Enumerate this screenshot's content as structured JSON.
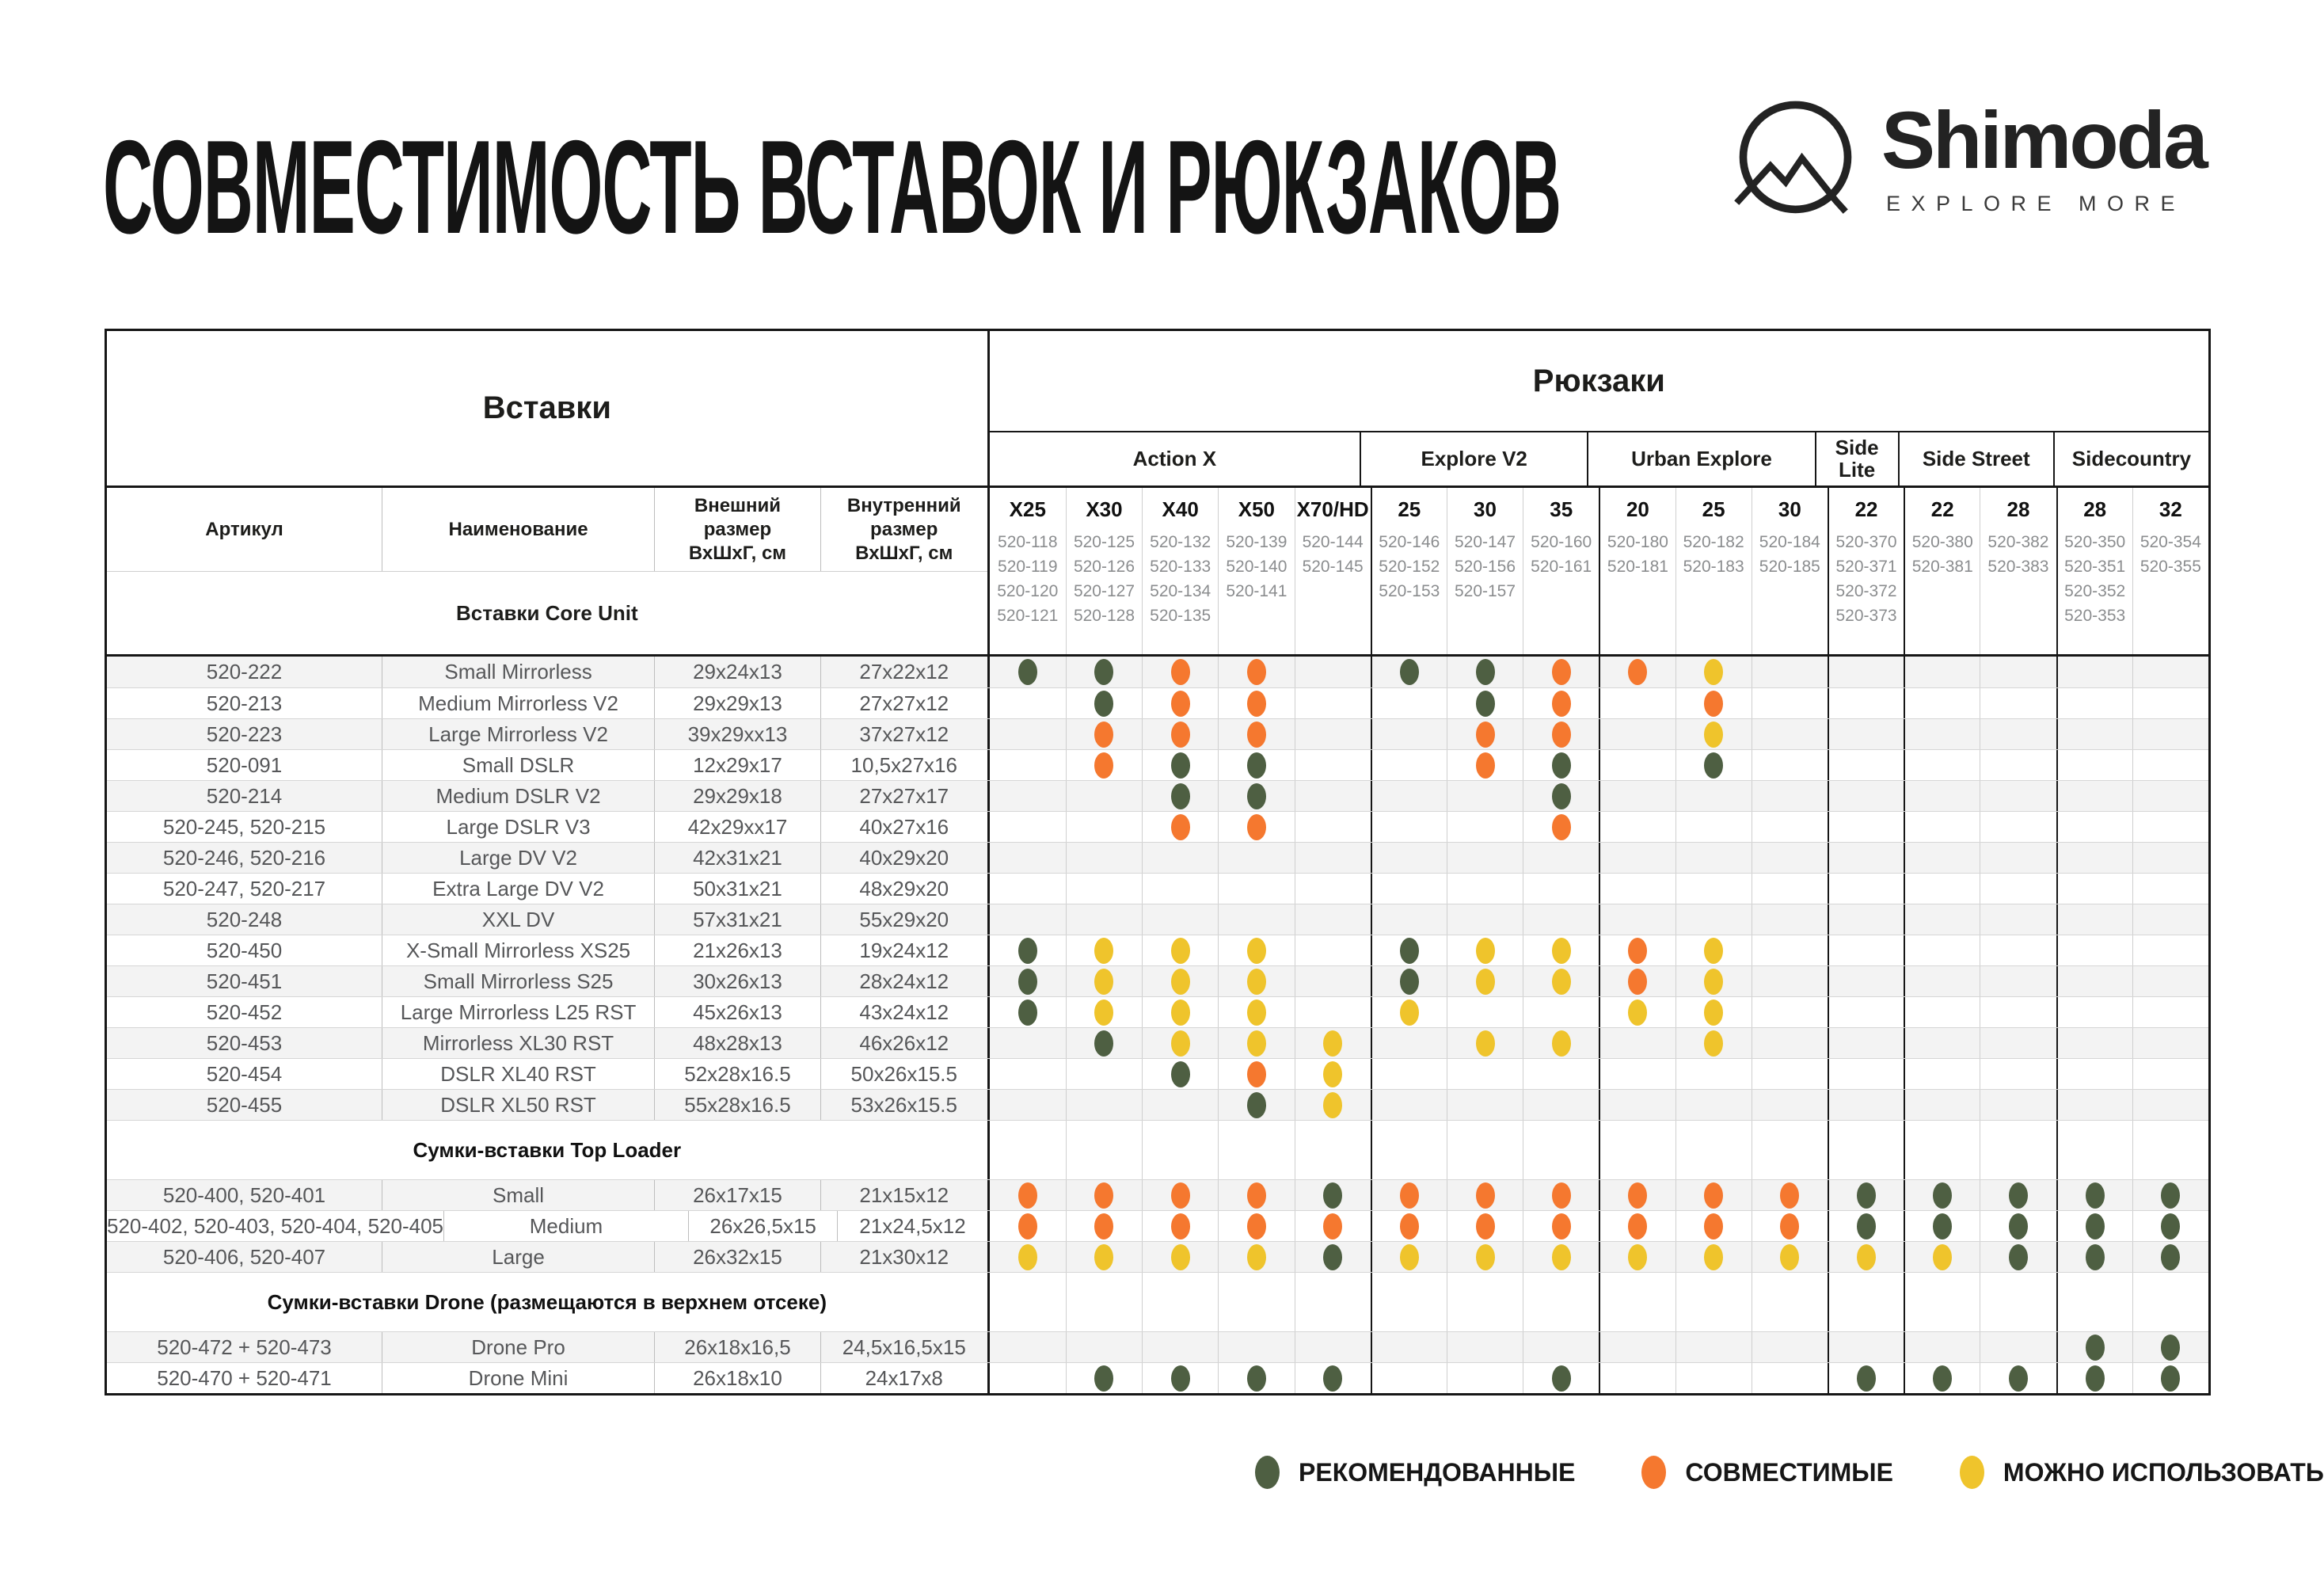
{
  "title": "СОВМЕСТИМОСТЬ ВСТАВОК И РЮКЗАКОВ",
  "logo": {
    "brand": "Shimoda",
    "tagline": "EXPLORE MORE"
  },
  "dot_colors": {
    "R": "#4e5f42",
    "C": "#f5782f",
    "U": "#efc42c"
  },
  "table": {
    "inserts_header": "Вставки",
    "backpacks_header": "Рюкзаки",
    "left_columns": [
      "Артикул",
      "Наименование",
      "Внешний размер ВхШхГ, см",
      "Внутренний размер ВхШхГ, см"
    ],
    "groups": [
      {
        "name": "Action X",
        "cols": 5
      },
      {
        "name": "Explore V2",
        "cols": 3
      },
      {
        "name": "Urban Explore",
        "cols": 3
      },
      {
        "name": "Side Lite",
        "cols": 1
      },
      {
        "name": "Side Street",
        "cols": 2
      },
      {
        "name": "Sidecountry",
        "cols": 2
      }
    ],
    "columns": [
      {
        "size": "X25",
        "articles": [
          "520-118",
          "520-119",
          "520-120",
          "520-121"
        ]
      },
      {
        "size": "X30",
        "articles": [
          "520-125",
          "520-126",
          "520-127",
          "520-128"
        ]
      },
      {
        "size": "X40",
        "articles": [
          "520-132",
          "520-133",
          "520-134",
          "520-135"
        ]
      },
      {
        "size": "X50",
        "articles": [
          "520-139",
          "520-140",
          "520-141"
        ]
      },
      {
        "size": "X70/HD",
        "articles": [
          "520-144",
          "520-145"
        ]
      },
      {
        "size": "25",
        "articles": [
          "520-146",
          "520-152",
          "520-153"
        ]
      },
      {
        "size": "30",
        "articles": [
          "520-147",
          "520-156",
          "520-157"
        ]
      },
      {
        "size": "35",
        "articles": [
          "520-160",
          "520-161"
        ]
      },
      {
        "size": "20",
        "articles": [
          "520-180",
          "520-181"
        ]
      },
      {
        "size": "25",
        "articles": [
          "520-182",
          "520-183"
        ]
      },
      {
        "size": "30",
        "articles": [
          "520-184",
          "520-185"
        ]
      },
      {
        "size": "22",
        "articles": [
          "520-370",
          "520-371",
          "520-372",
          "520-373"
        ]
      },
      {
        "size": "22",
        "articles": [
          "520-380",
          "520-381"
        ]
      },
      {
        "size": "28",
        "articles": [
          "520-382",
          "520-383"
        ]
      },
      {
        "size": "28",
        "articles": [
          "520-350",
          "520-351",
          "520-352",
          "520-353"
        ]
      },
      {
        "size": "32",
        "articles": [
          "520-354",
          "520-355"
        ]
      }
    ],
    "rows": [
      {
        "type": "section",
        "label": "Вставки Core Unit"
      },
      {
        "type": "item",
        "article": "520-222",
        "name": "Small Mirrorless",
        "outer": "29x24x13",
        "inner": "27x22x12",
        "dots": "RRCC_RRCCU______"
      },
      {
        "type": "item",
        "article": "520-213",
        "name": "Medium Mirrorless V2",
        "outer": "29x29x13",
        "inner": "27x27x12",
        "dots": "_RCC__RC_C______"
      },
      {
        "type": "item",
        "article": "520-223",
        "name": "Large Mirrorless V2",
        "outer": "39x29xx13",
        "inner": "37x27x12",
        "dots": "_CCC__CC_U______"
      },
      {
        "type": "item",
        "article": "520-091",
        "name": "Small DSLR",
        "outer": "12x29x17",
        "inner": "10,5x27x16",
        "dots": "_CRR__CR_R______"
      },
      {
        "type": "item",
        "article": "520-214",
        "name": "Medium DSLR V2",
        "outer": "29x29x18",
        "inner": "27x27x17",
        "dots": "__RR___R________"
      },
      {
        "type": "item",
        "article": "520-245, 520-215",
        "name": "Large DSLR V3",
        "outer": "42x29xx17",
        "inner": "40x27x16",
        "dots": "__CC___C________"
      },
      {
        "type": "item",
        "article": "520-246, 520-216",
        "name": "Large DV V2",
        "outer": "42x31x21",
        "inner": "40x29x20",
        "dots": "________________"
      },
      {
        "type": "item",
        "article": "520-247, 520-217",
        "name": "Extra Large DV V2",
        "outer": "50x31x21",
        "inner": "48x29x20",
        "dots": "________________"
      },
      {
        "type": "item",
        "article": "520-248",
        "name": "XXL DV",
        "outer": "57x31x21",
        "inner": "55x29x20",
        "dots": "________________"
      },
      {
        "type": "item",
        "article": "520-450",
        "name": "X-Small Mirrorless XS25",
        "outer": "21x26x13",
        "inner": "19x24x12",
        "dots": "RUUU_RUUCU______"
      },
      {
        "type": "item",
        "article": "520-451",
        "name": "Small Mirrorless S25",
        "outer": "30x26x13",
        "inner": "28x24x12",
        "dots": "RUUU_RUUCU______"
      },
      {
        "type": "item",
        "article": "520-452",
        "name": "Large Mirrorless L25 RST",
        "outer": "45x26x13",
        "inner": "43x24x12",
        "dots": "RUUU_U__UU______"
      },
      {
        "type": "item",
        "article": "520-453",
        "name": "Mirrorless XL30 RST",
        "outer": "48x28x13",
        "inner": "46x26x12",
        "dots": "_RUUU_UU_U______"
      },
      {
        "type": "item",
        "article": "520-454",
        "name": "DSLR XL40 RST",
        "outer": "52x28x16.5",
        "inner": "50x26x15.5",
        "dots": "__RCU___________"
      },
      {
        "type": "item",
        "article": "520-455",
        "name": "DSLR XL50 RST",
        "outer": "55x28x16.5",
        "inner": "53x26x15.5",
        "dots": "___RU___________"
      },
      {
        "type": "section",
        "label": "Сумки-вставки Top Loader"
      },
      {
        "type": "item",
        "article": "520-400, 520-401",
        "name": "Small",
        "outer": "26x17x15",
        "inner": "21x15x12",
        "dots": "CCCCRCCCCCCRRRRR"
      },
      {
        "type": "item",
        "article": "520-402, 520-403, 520-404, 520-405",
        "name": "Medium",
        "outer": "26x26,5x15",
        "inner": "21x24,5x12",
        "dots": "CCCCCCCCCCCRRRRR"
      },
      {
        "type": "item",
        "article": "520-406, 520-407",
        "name": "Large",
        "outer": "26x32x15",
        "inner": "21x30x12",
        "dots": "UUUURUUUUUUUURRR"
      },
      {
        "type": "section",
        "label": "Сумки-вставки Drone (размещаются в верхнем отсеке)"
      },
      {
        "type": "item",
        "article": "520-472 + 520-473",
        "name": "Drone Pro",
        "outer": "26x18x16,5",
        "inner": "24,5x16,5x15",
        "dots": "______________RR"
      },
      {
        "type": "item",
        "article": "520-470 + 520-471",
        "name": "Drone Mini",
        "outer": "26x18x10",
        "inner": "24x17x8",
        "dots": "_RRRR__R___RRRRR"
      }
    ]
  },
  "legend": [
    {
      "key": "R",
      "label": "РЕКОМЕНДОВАННЫЕ",
      "color": "#4e5f42"
    },
    {
      "key": "C",
      "label": "СОВМЕСТИМЫЕ",
      "color": "#f5782f"
    },
    {
      "key": "U",
      "label": "МОЖНО ИСПОЛЬЗОВАТЬ",
      "color": "#efc42c"
    }
  ]
}
